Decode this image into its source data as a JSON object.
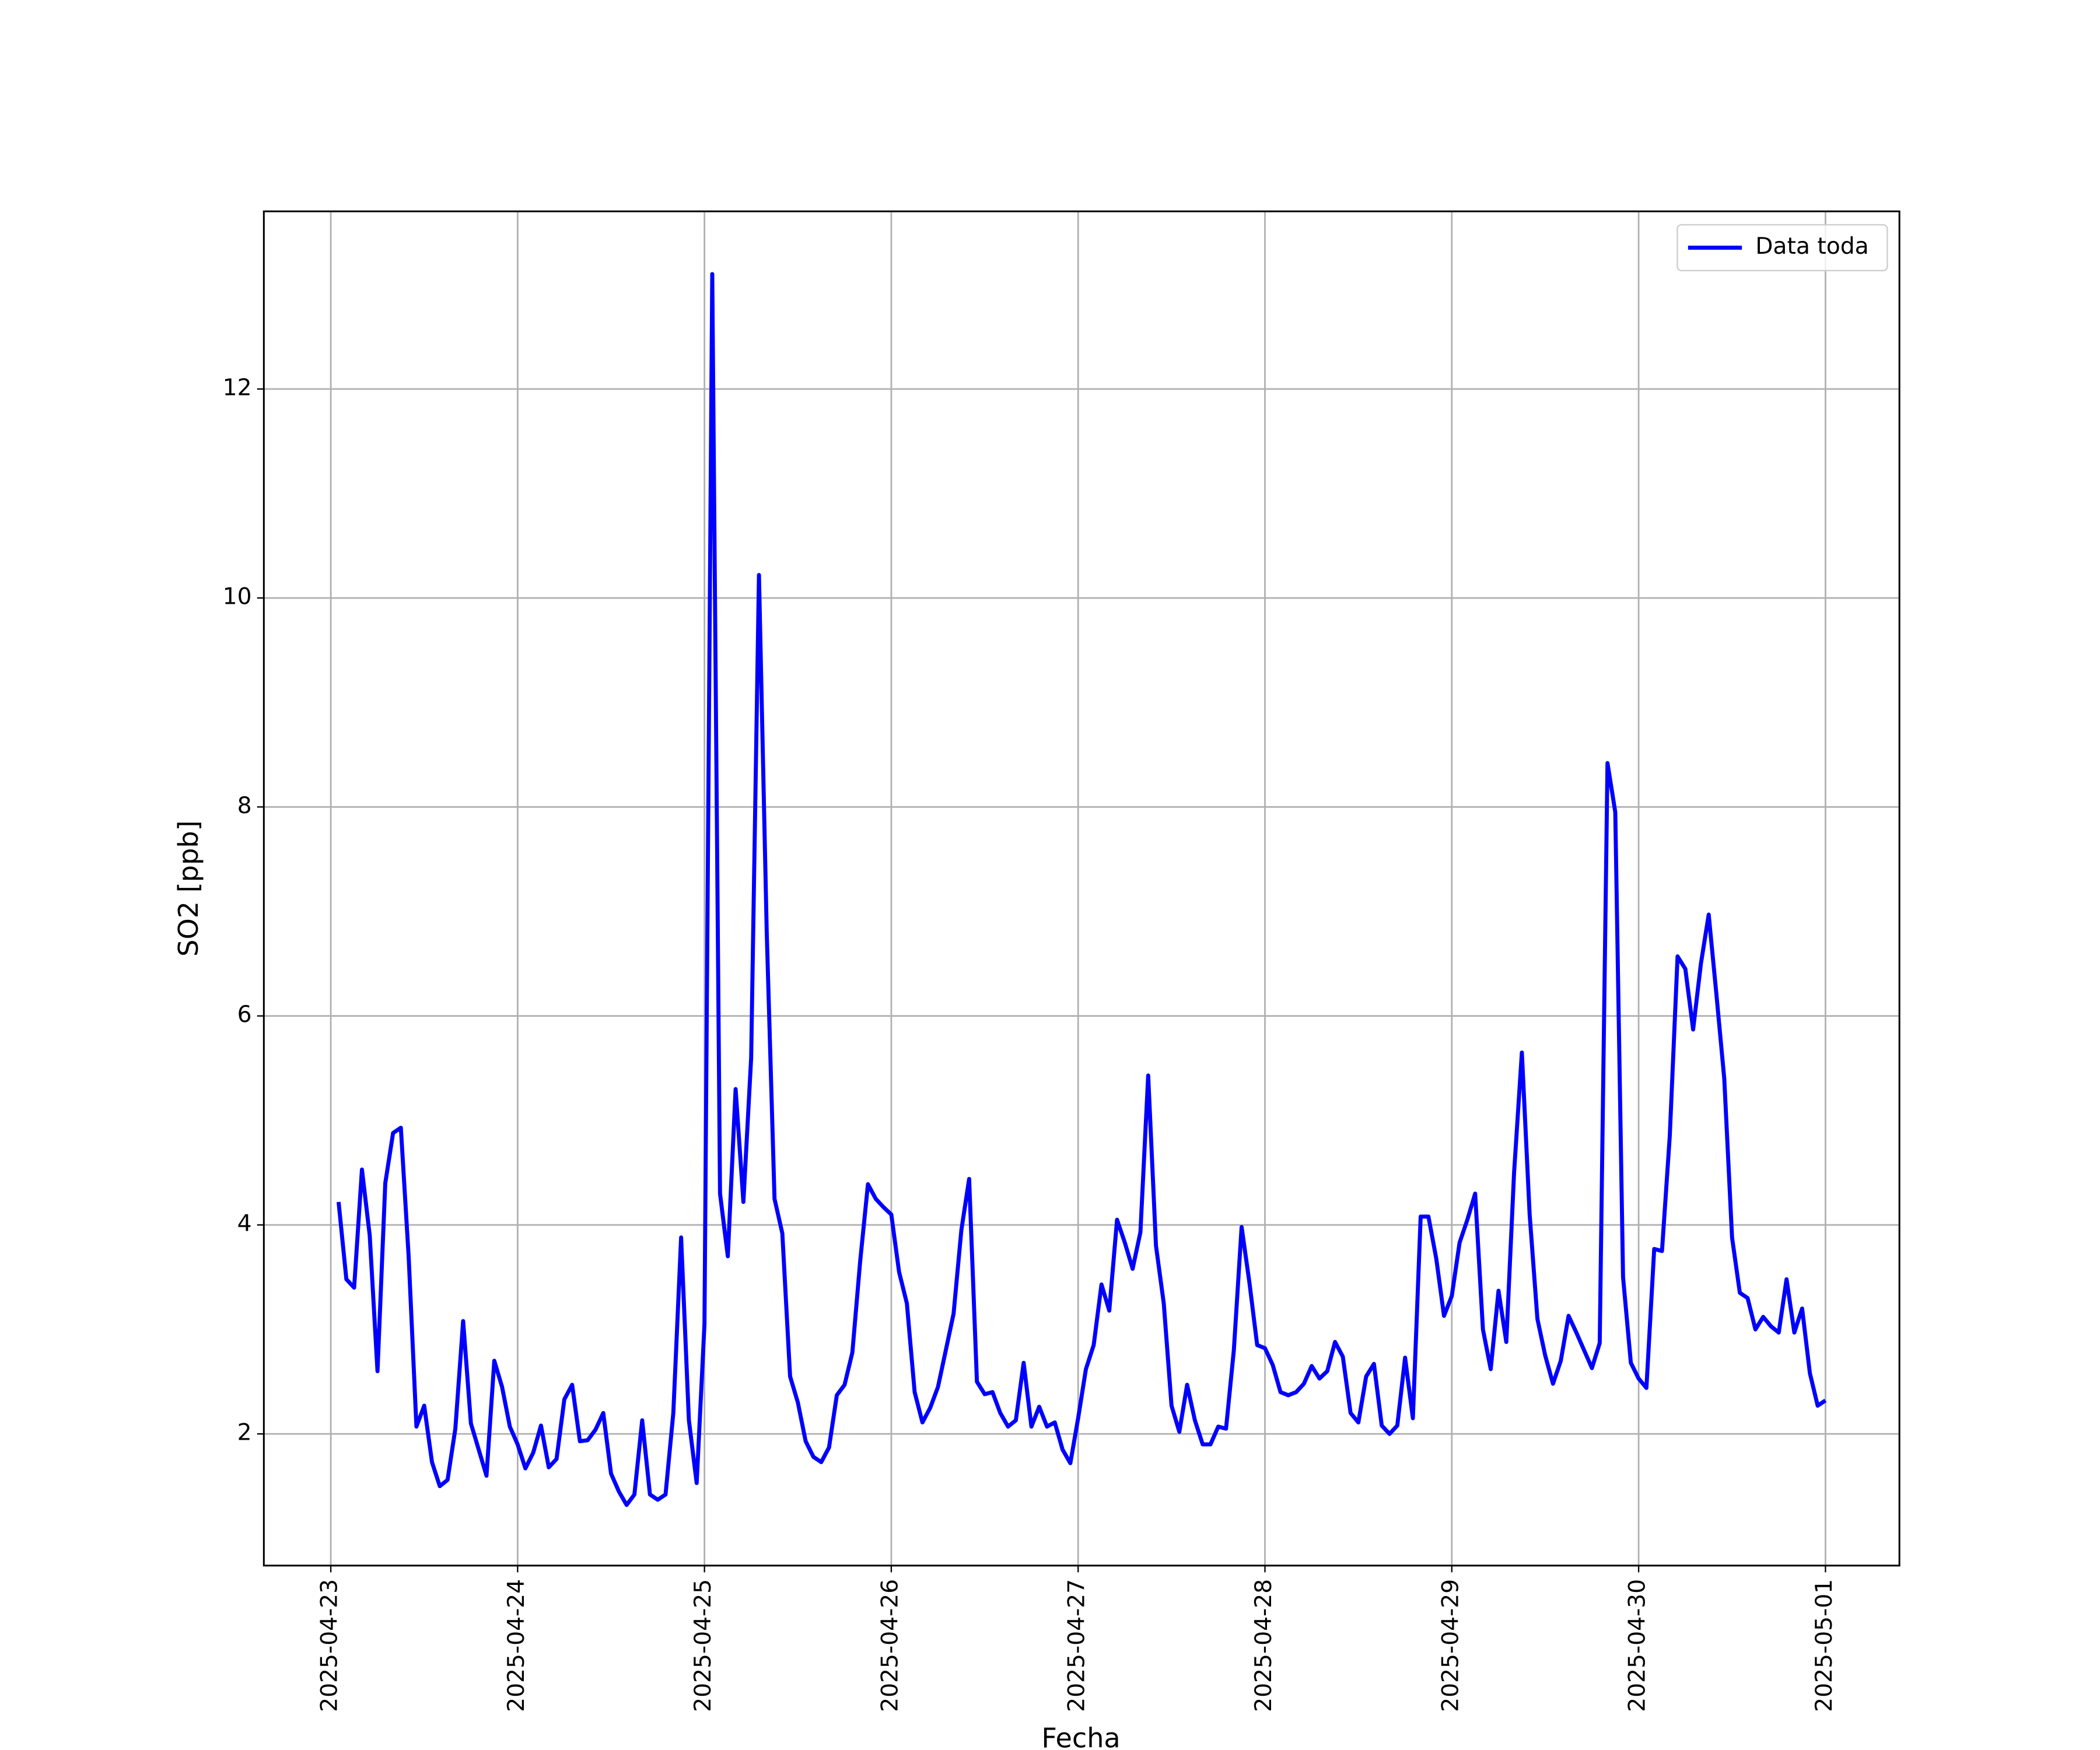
{
  "chart_data": {
    "type": "line",
    "xlabel": "Fecha",
    "ylabel": "SO2 [ppb]",
    "grid": true,
    "legend": "upper right",
    "xlim": [
      "2025-04-22 15:24",
      "2025-05-01 09:30"
    ],
    "xticks": [
      "2025-04-23",
      "2025-04-24",
      "2025-04-25",
      "2025-04-26",
      "2025-04-27",
      "2025-04-28",
      "2025-04-29",
      "2025-04-30",
      "2025-05-01"
    ],
    "ylim": [
      0.74,
      13.7
    ],
    "yticks": [
      2,
      4,
      6,
      8,
      10,
      12
    ],
    "x": [
      "2025-04-23 01:00",
      "2025-04-23 02:00",
      "2025-04-23 03:00",
      "2025-04-23 04:00",
      "2025-04-23 05:00",
      "2025-04-23 06:00",
      "2025-04-23 07:00",
      "2025-04-23 08:00",
      "2025-04-23 09:00",
      "2025-04-23 10:00",
      "2025-04-23 11:00",
      "2025-04-23 12:00",
      "2025-04-23 13:00",
      "2025-04-23 14:00",
      "2025-04-23 15:00",
      "2025-04-23 16:00",
      "2025-04-23 17:00",
      "2025-04-23 18:00",
      "2025-04-23 19:00",
      "2025-04-23 20:00",
      "2025-04-23 21:00",
      "2025-04-23 22:00",
      "2025-04-23 23:00",
      "2025-04-24 00:00",
      "2025-04-24 01:00",
      "2025-04-24 02:00",
      "2025-04-24 03:00",
      "2025-04-24 04:00",
      "2025-04-24 05:00",
      "2025-04-24 06:00",
      "2025-04-24 07:00",
      "2025-04-24 08:00",
      "2025-04-24 09:00",
      "2025-04-24 10:00",
      "2025-04-24 11:00",
      "2025-04-24 12:00",
      "2025-04-24 13:00",
      "2025-04-24 14:00",
      "2025-04-24 15:00",
      "2025-04-24 16:00",
      "2025-04-24 17:00",
      "2025-04-24 18:00",
      "2025-04-24 19:00",
      "2025-04-24 20:00",
      "2025-04-24 21:00",
      "2025-04-24 22:00",
      "2025-04-24 23:00",
      "2025-04-25 00:00",
      "2025-04-25 01:00",
      "2025-04-25 02:00",
      "2025-04-25 03:00",
      "2025-04-25 04:00",
      "2025-04-25 05:00",
      "2025-04-25 06:00",
      "2025-04-25 07:00",
      "2025-04-25 08:00",
      "2025-04-25 09:00",
      "2025-04-25 10:00",
      "2025-04-25 11:00",
      "2025-04-25 12:00",
      "2025-04-25 13:00",
      "2025-04-25 14:00",
      "2025-04-25 15:00",
      "2025-04-25 16:00",
      "2025-04-25 17:00",
      "2025-04-25 18:00",
      "2025-04-25 19:00",
      "2025-04-25 20:00",
      "2025-04-25 21:00",
      "2025-04-25 22:00",
      "2025-04-25 23:00",
      "2025-04-26 00:00",
      "2025-04-26 01:00",
      "2025-04-26 02:00",
      "2025-04-26 03:00",
      "2025-04-26 04:00",
      "2025-04-26 05:00",
      "2025-04-26 06:00",
      "2025-04-26 07:00",
      "2025-04-26 08:00",
      "2025-04-26 09:00",
      "2025-04-26 10:00",
      "2025-04-26 11:00",
      "2025-04-26 12:00",
      "2025-04-26 13:00",
      "2025-04-26 14:00",
      "2025-04-26 15:00",
      "2025-04-26 16:00",
      "2025-04-26 17:00",
      "2025-04-26 18:00",
      "2025-04-26 19:00",
      "2025-04-26 20:00",
      "2025-04-26 21:00",
      "2025-04-26 22:00",
      "2025-04-26 23:00",
      "2025-04-27 00:00",
      "2025-04-27 01:00",
      "2025-04-27 02:00",
      "2025-04-27 03:00",
      "2025-04-27 04:00",
      "2025-04-27 05:00",
      "2025-04-27 06:00",
      "2025-04-27 07:00",
      "2025-04-27 08:00",
      "2025-04-27 09:00",
      "2025-04-27 10:00",
      "2025-04-27 11:00",
      "2025-04-27 12:00",
      "2025-04-27 13:00",
      "2025-04-27 14:00",
      "2025-04-27 15:00",
      "2025-04-27 16:00",
      "2025-04-27 17:00",
      "2025-04-27 18:00",
      "2025-04-27 19:00",
      "2025-04-27 20:00",
      "2025-04-27 21:00",
      "2025-04-27 22:00",
      "2025-04-27 23:00",
      "2025-04-28 00:00",
      "2025-04-28 01:00",
      "2025-04-28 02:00",
      "2025-04-28 03:00",
      "2025-04-28 04:00",
      "2025-04-28 05:00",
      "2025-04-28 06:00",
      "2025-04-28 07:00",
      "2025-04-28 08:00",
      "2025-04-28 09:00",
      "2025-04-28 10:00",
      "2025-04-28 11:00",
      "2025-04-28 12:00",
      "2025-04-28 13:00",
      "2025-04-28 14:00",
      "2025-04-28 15:00",
      "2025-04-28 16:00",
      "2025-04-28 17:00",
      "2025-04-28 18:00",
      "2025-04-28 19:00",
      "2025-04-28 20:00",
      "2025-04-28 21:00",
      "2025-04-28 22:00",
      "2025-04-28 23:00",
      "2025-04-29 00:00",
      "2025-04-29 01:00",
      "2025-04-29 02:00",
      "2025-04-29 03:00",
      "2025-04-29 04:00",
      "2025-04-29 05:00",
      "2025-04-29 06:00",
      "2025-04-29 07:00",
      "2025-04-29 08:00",
      "2025-04-29 09:00",
      "2025-04-29 10:00",
      "2025-04-29 11:00",
      "2025-04-29 12:00",
      "2025-04-29 13:00",
      "2025-04-29 14:00",
      "2025-04-29 15:00",
      "2025-04-29 16:00",
      "2025-04-29 17:00",
      "2025-04-29 18:00",
      "2025-04-29 19:00",
      "2025-04-29 20:00",
      "2025-04-29 21:00",
      "2025-04-29 22:00",
      "2025-04-29 23:00",
      "2025-04-30 00:00",
      "2025-04-30 01:00",
      "2025-04-30 02:00",
      "2025-04-30 03:00",
      "2025-04-30 04:00",
      "2025-04-30 05:00",
      "2025-04-30 06:00",
      "2025-04-30 07:00",
      "2025-04-30 08:00",
      "2025-04-30 09:00",
      "2025-04-30 10:00",
      "2025-04-30 11:00",
      "2025-04-30 12:00",
      "2025-04-30 13:00",
      "2025-04-30 14:00",
      "2025-04-30 15:00",
      "2025-04-30 16:00",
      "2025-04-30 17:00",
      "2025-04-30 18:00",
      "2025-04-30 19:00",
      "2025-04-30 20:00",
      "2025-04-30 21:00",
      "2025-04-30 22:00",
      "2025-04-30 23:00",
      "2025-05-01 00:00"
    ],
    "series": [
      {
        "name": "Data toda",
        "color": "#0000ff",
        "values": [
          4.22,
          3.48,
          3.4,
          4.53,
          3.9,
          2.6,
          4.4,
          4.88,
          4.93,
          3.7,
          2.07,
          2.27,
          1.73,
          1.5,
          1.56,
          2.05,
          3.08,
          2.1,
          1.85,
          1.6,
          2.7,
          2.45,
          2.07,
          1.9,
          1.67,
          1.82,
          2.08,
          1.68,
          1.76,
          2.33,
          2.47,
          1.93,
          1.94,
          2.04,
          2.2,
          1.62,
          1.45,
          1.32,
          1.42,
          2.13,
          1.42,
          1.37,
          1.42,
          2.2,
          3.88,
          2.13,
          1.53,
          3.05,
          13.1,
          4.3,
          3.7,
          5.3,
          4.22,
          5.6,
          10.22,
          6.8,
          4.25,
          3.92,
          2.55,
          2.3,
          1.93,
          1.78,
          1.73,
          1.87,
          2.37,
          2.47,
          2.78,
          3.65,
          4.39,
          4.25,
          4.17,
          4.1,
          3.55,
          3.25,
          2.4,
          2.11,
          2.25,
          2.45,
          2.8,
          3.15,
          3.95,
          4.44,
          2.5,
          2.38,
          2.4,
          2.2,
          2.07,
          2.13,
          2.68,
          2.07,
          2.26,
          2.07,
          2.11,
          1.85,
          1.72,
          2.15,
          2.62,
          2.85,
          3.43,
          3.18,
          4.05,
          3.83,
          3.58,
          3.93,
          5.43,
          3.8,
          3.25,
          2.27,
          2.02,
          2.47,
          2.13,
          1.9,
          1.9,
          2.07,
          2.05,
          2.8,
          3.98,
          3.45,
          2.85,
          2.82,
          2.66,
          2.4,
          2.37,
          2.4,
          2.48,
          2.65,
          2.53,
          2.6,
          2.88,
          2.74,
          2.2,
          2.11,
          2.55,
          2.67,
          2.08,
          2.0,
          2.08,
          2.73,
          2.15,
          4.08,
          4.08,
          3.68,
          3.13,
          3.32,
          3.83,
          4.05,
          4.3,
          3.0,
          2.62,
          3.37,
          2.88,
          4.5,
          5.65,
          4.1,
          3.1,
          2.75,
          2.48,
          2.7,
          3.13,
          2.97,
          2.8,
          2.63,
          2.87,
          8.42,
          7.95,
          3.5,
          2.68,
          2.53,
          2.44,
          3.77,
          3.75,
          4.85,
          6.57,
          6.45,
          5.87,
          6.5,
          6.97,
          6.2,
          5.4,
          3.88,
          3.35,
          3.3,
          3.0,
          3.12,
          3.03,
          2.97,
          3.48,
          2.97,
          3.2,
          2.58,
          2.27,
          2.32
        ]
      }
    ]
  }
}
